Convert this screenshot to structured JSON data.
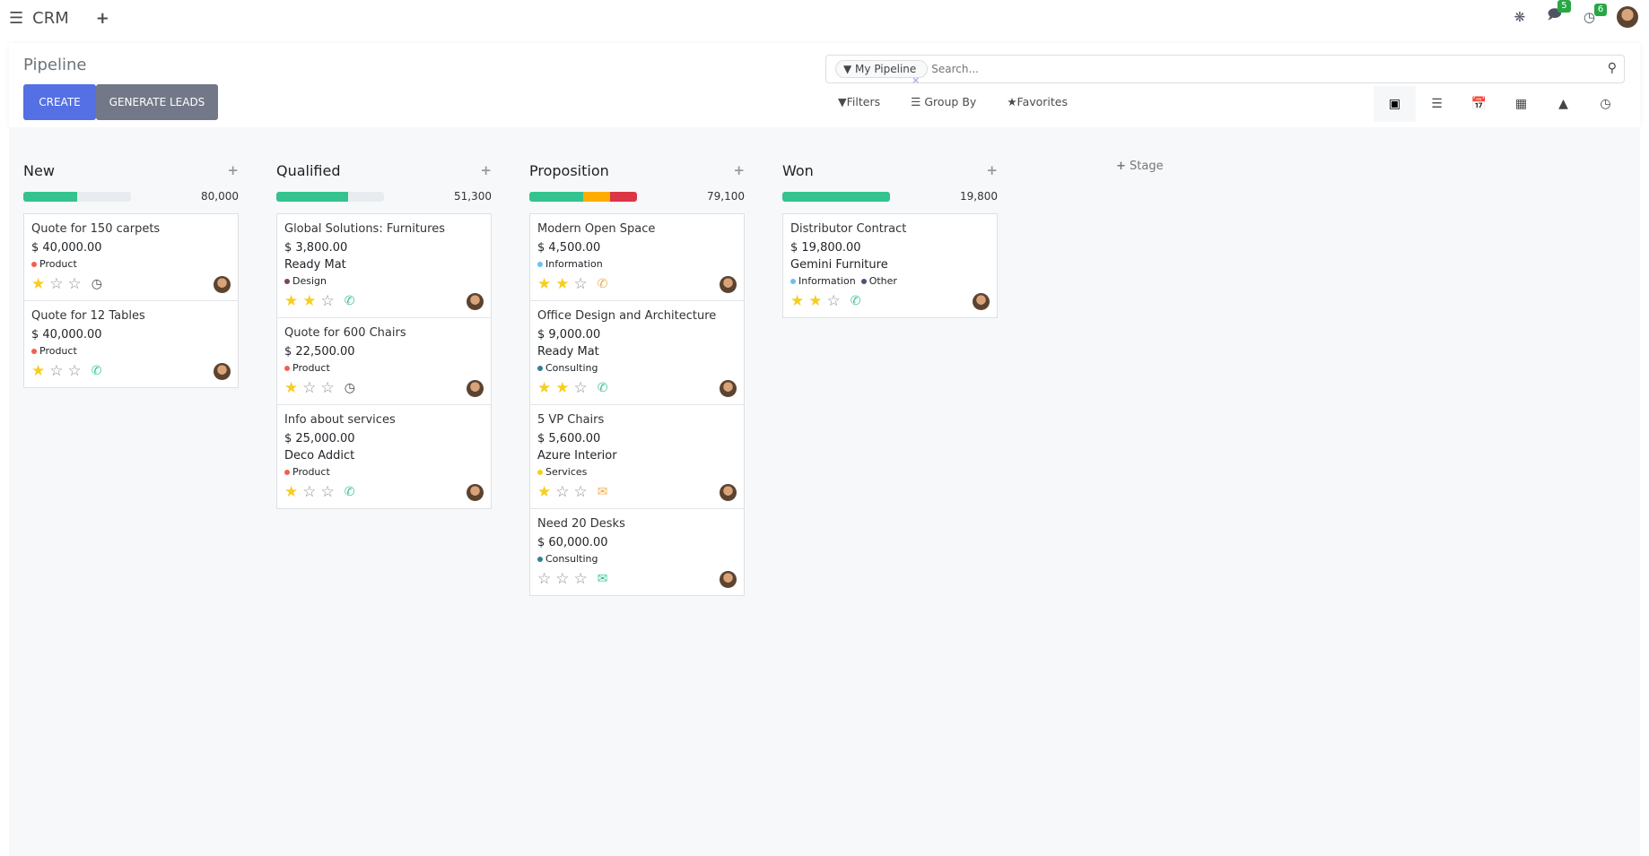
{
  "topbar": {
    "app": "CRM",
    "messages_count": "5",
    "activities_count": "6"
  },
  "control": {
    "title": "Pipeline",
    "create": "CREATE",
    "generate": "GENERATE LEADS",
    "facet": "My Pipeline",
    "search_placeholder": "Search...",
    "filters": "Filters",
    "group_by": "Group By",
    "favorites": "Favorites",
    "active_view": "kanban"
  },
  "add_stage": "Stage",
  "colors": {
    "green": "#34c38f",
    "orange": "#ffac00",
    "red": "#dc3545",
    "primary": "#5470e4"
  },
  "columns": [
    {
      "name": "New",
      "total": "80,000",
      "progress": [
        {
          "color": "#34c38f",
          "pct": 50
        }
      ],
      "cards": [
        {
          "title": "Quote for 150 carpets",
          "amount": "$ 40,000.00",
          "tags": [
            {
              "label": "Product",
              "color": "#f06050"
            }
          ],
          "stars": 1,
          "activity": "clock"
        },
        {
          "title": "Quote for 12 Tables",
          "amount": "$ 40,000.00",
          "tags": [
            {
              "label": "Product",
              "color": "#f06050"
            }
          ],
          "stars": 1,
          "activity": "phone-green"
        }
      ]
    },
    {
      "name": "Qualified",
      "total": "51,300",
      "progress": [
        {
          "color": "#34c38f",
          "pct": 67
        }
      ],
      "cards": [
        {
          "title": "Global Solutions: Furnitures",
          "amount": "$ 3,800.00",
          "company": "Ready Mat",
          "tags": [
            {
              "label": "Design",
              "color": "#824261"
            }
          ],
          "stars": 2,
          "activity": "phone-green"
        },
        {
          "title": "Quote for 600 Chairs",
          "amount": "$ 22,500.00",
          "tags": [
            {
              "label": "Product",
              "color": "#f06050"
            }
          ],
          "stars": 1,
          "activity": "clock"
        },
        {
          "title": "Info about services",
          "amount": "$ 25,000.00",
          "company": "Deco Addict",
          "tags": [
            {
              "label": "Product",
              "color": "#f06050"
            }
          ],
          "stars": 1,
          "activity": "phone-green"
        }
      ]
    },
    {
      "name": "Proposition",
      "total": "79,100",
      "progress": [
        {
          "color": "#34c38f",
          "pct": 50
        },
        {
          "color": "#ffac00",
          "pct": 25
        },
        {
          "color": "#dc3545",
          "pct": 25
        }
      ],
      "cards": [
        {
          "title": "Modern Open Space",
          "amount": "$ 4,500.00",
          "tags": [
            {
              "label": "Information",
              "color": "#6cc1ed"
            }
          ],
          "stars": 2,
          "activity": "phone-orange"
        },
        {
          "title": "Office Design and Architecture",
          "amount": "$ 9,000.00",
          "company": "Ready Mat",
          "tags": [
            {
              "label": "Consulting",
              "color": "#30829a"
            }
          ],
          "stars": 2,
          "activity": "phone-green"
        },
        {
          "title": "5 VP Chairs",
          "amount": "$ 5,600.00",
          "company": "Azure Interior",
          "tags": [
            {
              "label": "Services",
              "color": "#f7cd1f"
            }
          ],
          "stars": 1,
          "activity": "mail-orange"
        },
        {
          "title": "Need 20 Desks",
          "amount": "$ 60,000.00",
          "tags": [
            {
              "label": "Consulting",
              "color": "#30829a"
            }
          ],
          "stars": 0,
          "activity": "mail-green"
        }
      ]
    },
    {
      "name": "Won",
      "total": "19,800",
      "progress": [
        {
          "color": "#34c38f",
          "pct": 100
        }
      ],
      "cards": [
        {
          "title": "Distributor Contract",
          "amount": "$ 19,800.00",
          "company": "Gemini Furniture",
          "tags": [
            {
              "label": "Information",
              "color": "#6cc1ed"
            },
            {
              "label": "Other",
              "color": "#475577"
            }
          ],
          "stars": 2,
          "activity": "phone-green"
        }
      ]
    }
  ]
}
